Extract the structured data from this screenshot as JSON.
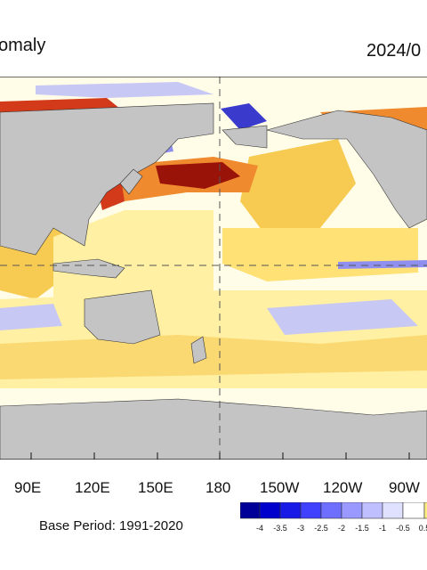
{
  "header": {
    "title_fragment": "omaly",
    "date_fragment": "2024/0"
  },
  "map": {
    "longitude_labels": [
      "90E",
      "120E",
      "150E",
      "180",
      "150W",
      "120W",
      "90W"
    ],
    "colors": {
      "land": "#c4c4c4",
      "ocean_neutral": "#ffffff",
      "warm_light": "#fff0a0",
      "warm": "#f7c84a",
      "warm_strong": "#f08a2e",
      "hot": "#d23a1a",
      "hottest": "#9a1308",
      "cool_light": "#c8c8f4",
      "cool": "#8f8ff0",
      "cool_strong": "#3a3acc",
      "coldest": "#0a0a8c",
      "gridline": "#555555"
    }
  },
  "footer": {
    "base_period": "Base Period: 1991-2020"
  },
  "legend": {
    "tick_labels": [
      "-4",
      "-3.5",
      "-3",
      "-2.5",
      "-2",
      "-1.5",
      "-1",
      "-0.5",
      "0.5"
    ],
    "swatches": [
      "#000099",
      "#0000cc",
      "#1a1ae6",
      "#4040ff",
      "#6f6fff",
      "#9999ff",
      "#bfbfff",
      "#e0e0ff",
      "#ffffff",
      "#ffee80"
    ]
  }
}
